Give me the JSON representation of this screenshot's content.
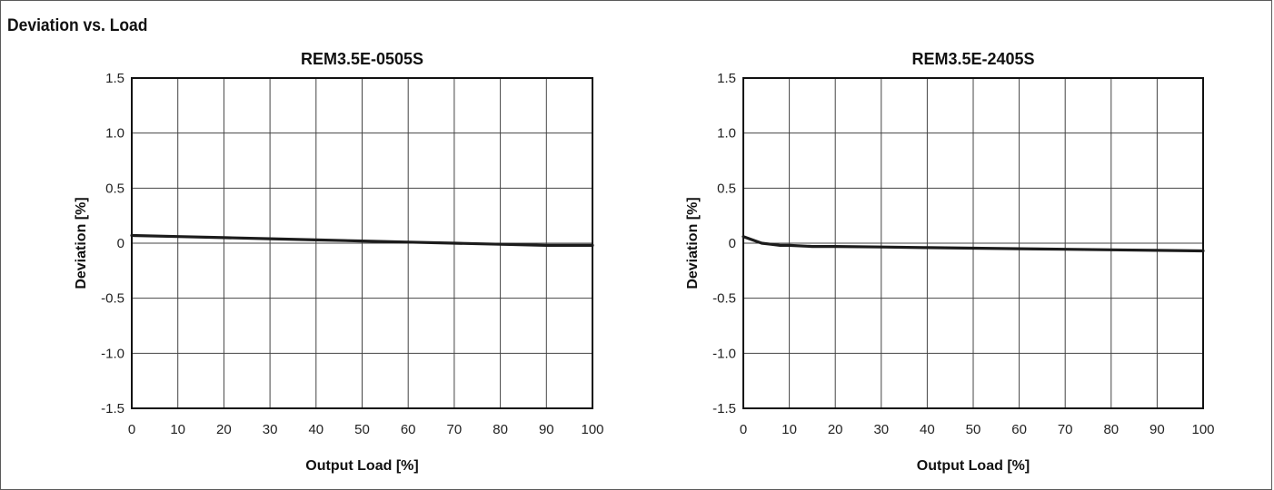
{
  "section_title": "Deviation vs. Load",
  "chart_data": [
    {
      "type": "line",
      "title": "REM3.5E-0505S",
      "xlabel": "Output Load [%]",
      "ylabel": "Deviation [%]",
      "xlim": [
        0,
        100
      ],
      "ylim": [
        -1.5,
        1.5
      ],
      "xticks": [
        "0",
        "10",
        "20",
        "30",
        "40",
        "50",
        "60",
        "70",
        "80",
        "90",
        "100"
      ],
      "yticks": [
        "1.5",
        "1.0",
        "0.5",
        "0",
        "-0.5",
        "-1.0",
        "-1.5"
      ],
      "grid": true,
      "series": [
        {
          "x": [
            0,
            10,
            20,
            30,
            40,
            50,
            60,
            70,
            80,
            90,
            100
          ],
          "values": [
            0.07,
            0.06,
            0.05,
            0.04,
            0.03,
            0.02,
            0.01,
            0.0,
            -0.01,
            -0.02,
            -0.02
          ]
        }
      ]
    },
    {
      "type": "line",
      "title": "REM3.5E-2405S",
      "xlabel": "Output Load [%]",
      "ylabel": "Deviation [%]",
      "xlim": [
        0,
        100
      ],
      "ylim": [
        -1.5,
        1.5
      ],
      "xticks": [
        "0",
        "10",
        "20",
        "30",
        "40",
        "50",
        "60",
        "70",
        "80",
        "90",
        "100"
      ],
      "yticks": [
        "1.5",
        "1.0",
        "0.5",
        "0",
        "-0.5",
        "-1.0",
        "-1.5"
      ],
      "grid": true,
      "series": [
        {
          "x": [
            0,
            2,
            4,
            6,
            8,
            10,
            15,
            20,
            30,
            40,
            50,
            60,
            70,
            80,
            90,
            100
          ],
          "values": [
            0.06,
            0.03,
            0.0,
            -0.01,
            -0.02,
            -0.02,
            -0.03,
            -0.03,
            -0.035,
            -0.04,
            -0.045,
            -0.05,
            -0.055,
            -0.06,
            -0.065,
            -0.07
          ]
        }
      ]
    }
  ]
}
